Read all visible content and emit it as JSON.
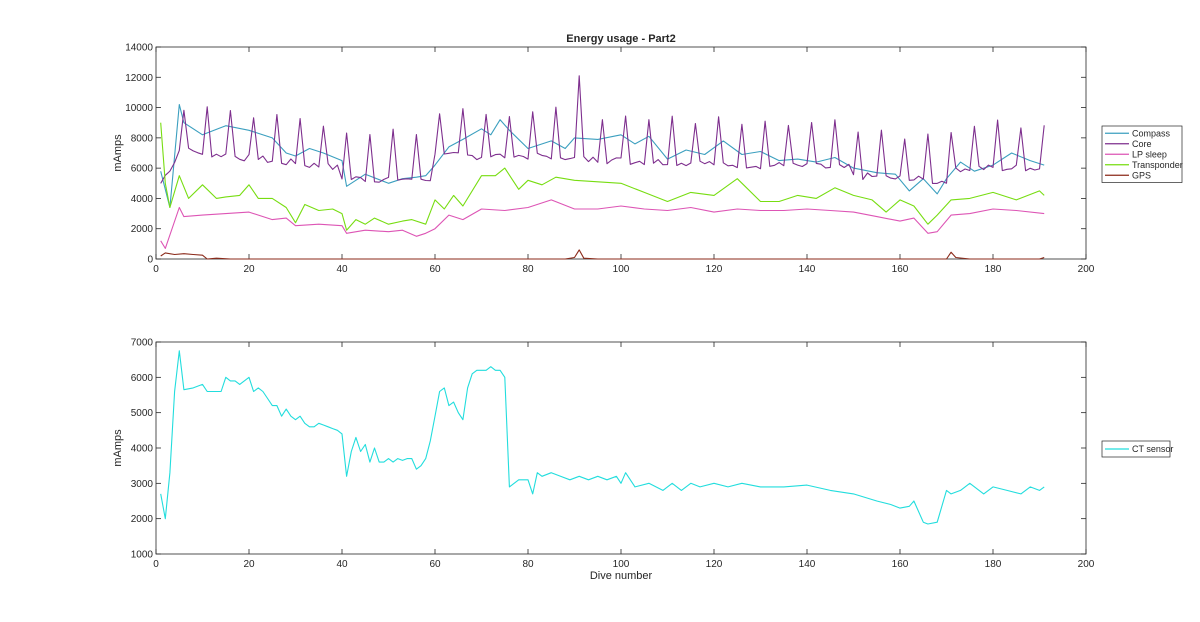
{
  "chart_data": [
    {
      "type": "line",
      "title": "Energy usage - Part2",
      "xlabel": "",
      "ylabel": "mAmps",
      "xlim": [
        0,
        200
      ],
      "ylim": [
        0,
        14000
      ],
      "xticks": [
        "0",
        "20",
        "40",
        "60",
        "80",
        "100",
        "120",
        "140",
        "160",
        "180",
        "200"
      ],
      "yticks": [
        "0",
        "2000",
        "4000",
        "6000",
        "8000",
        "10000",
        "12000",
        "14000"
      ],
      "legend_position": "outside-right",
      "grid": false,
      "series": [
        {
          "name": "Compass",
          "color": "#3b9fbf",
          "x": [
            1,
            3,
            5,
            6,
            10,
            15,
            20,
            25,
            28,
            30,
            33,
            36,
            40,
            41,
            45,
            50,
            53,
            56,
            58,
            60,
            63,
            66,
            70,
            72,
            74,
            76,
            80,
            85,
            88,
            90,
            95,
            100,
            103,
            106,
            110,
            114,
            118,
            122,
            126,
            130,
            134,
            138,
            142,
            146,
            150,
            155,
            159,
            162,
            165,
            168,
            170,
            173,
            176,
            180,
            184,
            188,
            191
          ],
          "y": [
            5800,
            3400,
            10200,
            9000,
            8200,
            8800,
            8500,
            8000,
            7000,
            6800,
            7300,
            7000,
            6500,
            4800,
            5600,
            5000,
            5300,
            5400,
            5500,
            6200,
            7400,
            7900,
            8600,
            8200,
            9200,
            8500,
            7300,
            7800,
            7300,
            8000,
            7900,
            8200,
            7600,
            8100,
            6600,
            7200,
            6900,
            7800,
            6900,
            7100,
            6500,
            6600,
            6400,
            6700,
            6000,
            5700,
            5600,
            4500,
            5300,
            4300,
            5300,
            6400,
            5800,
            6200,
            7000,
            6500,
            6200
          ]
        },
        {
          "name": "Core",
          "color": "#7e2f8e",
          "spikes": true,
          "x": [
            1,
            191
          ],
          "y": [
            4500,
            6500
          ]
        },
        {
          "name": "LP sleep",
          "color": "#dd55b5",
          "x": [
            1,
            2,
            5,
            6,
            10,
            15,
            20,
            25,
            28,
            30,
            35,
            40,
            41,
            45,
            50,
            53,
            56,
            58,
            60,
            63,
            66,
            70,
            75,
            80,
            85,
            90,
            95,
            100,
            105,
            110,
            115,
            120,
            125,
            130,
            135,
            140,
            145,
            150,
            155,
            160,
            163,
            166,
            168,
            171,
            175,
            180,
            185,
            191
          ],
          "y": [
            1200,
            700,
            3400,
            2800,
            2900,
            3000,
            3100,
            2600,
            2700,
            2200,
            2300,
            2200,
            1700,
            1900,
            1800,
            1900,
            1500,
            1700,
            2000,
            2900,
            2600,
            3300,
            3200,
            3400,
            3900,
            3300,
            3300,
            3500,
            3300,
            3200,
            3400,
            3100,
            3300,
            3200,
            3200,
            3300,
            3200,
            3100,
            2800,
            2500,
            2700,
            1700,
            1800,
            2900,
            3000,
            3300,
            3200,
            3000
          ]
        },
        {
          "name": "Transponder",
          "color": "#77dd11",
          "x": [
            1,
            2,
            3,
            5,
            7,
            10,
            13,
            15,
            18,
            20,
            22,
            25,
            28,
            30,
            32,
            35,
            38,
            40,
            41,
            43,
            45,
            47,
            50,
            53,
            55,
            58,
            60,
            62,
            64,
            66,
            70,
            73,
            75,
            78,
            80,
            83,
            86,
            90,
            95,
            100,
            105,
            110,
            115,
            120,
            125,
            130,
            134,
            138,
            142,
            146,
            150,
            154,
            157,
            160,
            163,
            166,
            168,
            171,
            175,
            180,
            185,
            190,
            191
          ],
          "y": [
            9000,
            5000,
            3400,
            5500,
            4000,
            4900,
            4000,
            4100,
            4200,
            4900,
            4000,
            4000,
            3400,
            2400,
            3600,
            3200,
            3300,
            3000,
            1900,
            2600,
            2300,
            2700,
            2300,
            2500,
            2600,
            2300,
            3900,
            3300,
            4200,
            3500,
            5500,
            5500,
            6000,
            4600,
            5200,
            4900,
            5400,
            5200,
            5100,
            5000,
            4400,
            3800,
            4400,
            4200,
            5300,
            3800,
            3800,
            4200,
            4000,
            4700,
            4200,
            3900,
            3100,
            3900,
            3500,
            2300,
            2900,
            3900,
            4000,
            4400,
            3900,
            4500,
            4200
          ]
        },
        {
          "name": "GPS",
          "color": "#8b2a1a",
          "x": [
            1,
            2,
            4,
            6,
            8,
            10,
            11,
            13,
            16,
            20,
            25,
            30,
            35,
            40,
            45,
            50,
            55,
            60,
            65,
            70,
            75,
            80,
            85,
            88,
            90,
            91,
            92,
            95,
            100,
            105,
            110,
            115,
            120,
            125,
            130,
            135,
            140,
            145,
            150,
            155,
            160,
            165,
            168,
            170,
            171,
            172,
            175,
            180,
            185,
            188,
            190,
            191
          ],
          "y": [
            200,
            400,
            300,
            350,
            300,
            250,
            0,
            50,
            0,
            0,
            0,
            0,
            0,
            0,
            0,
            0,
            0,
            0,
            0,
            0,
            0,
            0,
            0,
            0,
            100,
            600,
            50,
            0,
            0,
            0,
            0,
            0,
            0,
            0,
            0,
            0,
            0,
            0,
            0,
            0,
            0,
            0,
            0,
            0,
            450,
            100,
            0,
            0,
            0,
            0,
            0,
            100
          ]
        }
      ]
    },
    {
      "type": "line",
      "title": "",
      "xlabel": "Dive number",
      "ylabel": "mAmps",
      "xlim": [
        0,
        200
      ],
      "ylim": [
        1000,
        7000
      ],
      "xticks": [
        "0",
        "20",
        "40",
        "60",
        "80",
        "100",
        "120",
        "140",
        "160",
        "180",
        "200"
      ],
      "yticks": [
        "1000",
        "2000",
        "3000",
        "4000",
        "5000",
        "6000",
        "7000"
      ],
      "legend_position": "outside-right",
      "grid": false,
      "series": [
        {
          "name": "CT sensor",
          "color": "#22dddd",
          "x": [
            1,
            2,
            3,
            4,
            5,
            6,
            8,
            10,
            11,
            12,
            14,
            15,
            16,
            17,
            18,
            19,
            20,
            21,
            22,
            23,
            24,
            25,
            26,
            27,
            28,
            29,
            30,
            31,
            32,
            33,
            34,
            35,
            36,
            37,
            38,
            39,
            40,
            41,
            42,
            43,
            44,
            45,
            46,
            47,
            48,
            49,
            50,
            51,
            52,
            53,
            54,
            55,
            56,
            57,
            58,
            59,
            60,
            61,
            62,
            63,
            64,
            65,
            66,
            67,
            68,
            69,
            70,
            71,
            72,
            73,
            74,
            75,
            76,
            78,
            80,
            81,
            82,
            83,
            85,
            87,
            89,
            91,
            93,
            95,
            97,
            99,
            100,
            101,
            103,
            106,
            109,
            111,
            113,
            115,
            117,
            120,
            123,
            126,
            130,
            135,
            140,
            145,
            150,
            155,
            158,
            160,
            162,
            163,
            165,
            166,
            168,
            170,
            171,
            173,
            175,
            178,
            180,
            183,
            186,
            188,
            190,
            191
          ],
          "y": [
            2700,
            2000,
            3300,
            5600,
            6750,
            5650,
            5700,
            5800,
            5600,
            5600,
            5600,
            6000,
            5900,
            5900,
            5800,
            5900,
            6000,
            5600,
            5700,
            5600,
            5400,
            5200,
            5200,
            4900,
            5100,
            4900,
            4800,
            4900,
            4700,
            4600,
            4600,
            4700,
            4650,
            4600,
            4550,
            4500,
            4400,
            3200,
            3900,
            4300,
            3900,
            4100,
            3600,
            4000,
            3600,
            3600,
            3700,
            3600,
            3700,
            3650,
            3700,
            3700,
            3400,
            3500,
            3700,
            4200,
            4900,
            5600,
            5700,
            5200,
            5300,
            5000,
            4800,
            5700,
            6100,
            6200,
            6200,
            6200,
            6300,
            6200,
            6200,
            6000,
            2900,
            3100,
            3100,
            2700,
            3300,
            3200,
            3300,
            3200,
            3100,
            3200,
            3100,
            3200,
            3100,
            3200,
            3000,
            3300,
            2900,
            3000,
            2800,
            3000,
            2800,
            3000,
            2900,
            3000,
            2900,
            3000,
            2900,
            2900,
            2950,
            2800,
            2700,
            2500,
            2400,
            2300,
            2350,
            2500,
            1900,
            1850,
            1900,
            2800,
            2700,
            2800,
            3000,
            2700,
            2900,
            2800,
            2700,
            2900,
            2800,
            2900
          ]
        }
      ]
    }
  ]
}
